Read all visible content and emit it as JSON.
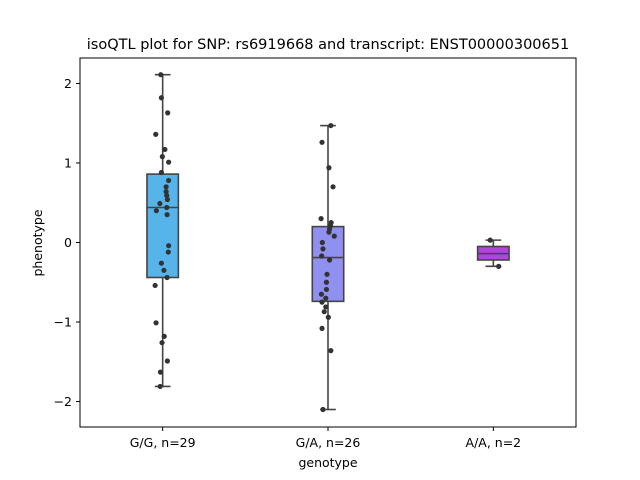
{
  "chart_data": {
    "type": "box",
    "title": "isoQTL plot for SNP: rs6919668 and transcript: ENST00000300651",
    "xlabel": "genotype",
    "ylabel": "phenotype",
    "ylim": [
      -2.32,
      2.32
    ],
    "yticks": [
      2,
      1,
      0,
      -1,
      -2
    ],
    "ytick_labels": [
      "2",
      "1",
      "0",
      "−1",
      "−2"
    ],
    "categories": [
      "G/G, n=29",
      "G/A, n=26",
      "A/A, n=2"
    ],
    "grid": false,
    "boxes": [
      {
        "label": "G/G, n=29",
        "color": "#56b4ea",
        "whislo": -1.81,
        "q1": -0.44,
        "med": 0.44,
        "q3": 0.86,
        "whishi": 2.11
      },
      {
        "label": "G/A, n=26",
        "color": "#9090f0",
        "whislo": -2.1,
        "q1": -0.74,
        "med": -0.19,
        "q3": 0.2,
        "whishi": 1.47
      },
      {
        "label": "A/A, n=2",
        "color": "#b044dd",
        "whislo": -0.3,
        "q1": -0.22,
        "med": -0.14,
        "q3": -0.05,
        "whishi": 0.03
      }
    ],
    "points": [
      [
        {
          "x": -0.06,
          "y": 2.11
        },
        {
          "x": -0.04,
          "y": 1.82
        },
        {
          "x": 0.16,
          "y": 1.63
        },
        {
          "x": -0.22,
          "y": 1.36
        },
        {
          "x": 0.07,
          "y": 1.17
        },
        {
          "x": -0.01,
          "y": 1.08
        },
        {
          "x": 0.19,
          "y": 1.01
        },
        {
          "x": -0.04,
          "y": 0.88
        },
        {
          "x": 0.19,
          "y": 0.78
        },
        {
          "x": 0.11,
          "y": 0.64
        },
        {
          "x": 0.13,
          "y": 0.59
        },
        {
          "x": 0.15,
          "y": 0.54
        },
        {
          "x": -0.09,
          "y": 0.49
        },
        {
          "x": 0.13,
          "y": 0.44
        },
        {
          "x": -0.2,
          "y": 0.4
        },
        {
          "x": 0.14,
          "y": 0.35
        },
        {
          "x": 0.19,
          "y": -0.04
        },
        {
          "x": 0.18,
          "y": -0.12
        },
        {
          "x": -0.04,
          "y": -0.26
        },
        {
          "x": 0.04,
          "y": -0.35
        },
        {
          "x": 0.14,
          "y": -0.44
        },
        {
          "x": -0.24,
          "y": -0.54
        },
        {
          "x": -0.21,
          "y": -1.01
        },
        {
          "x": 0.05,
          "y": -1.18
        },
        {
          "x": -0.02,
          "y": -1.26
        },
        {
          "x": 0.15,
          "y": -1.49
        },
        {
          "x": -0.07,
          "y": -1.63
        },
        {
          "x": -0.08,
          "y": -1.81
        },
        {
          "x": 0.11,
          "y": 0.7
        }
      ],
      [
        {
          "x": 0.09,
          "y": 1.47
        },
        {
          "x": -0.19,
          "y": 1.26
        },
        {
          "x": 0.03,
          "y": 0.94
        },
        {
          "x": 0.16,
          "y": 0.7
        },
        {
          "x": -0.22,
          "y": 0.3
        },
        {
          "x": 0.1,
          "y": 0.25
        },
        {
          "x": 0.08,
          "y": 0.21
        },
        {
          "x": 0.05,
          "y": 0.17
        },
        {
          "x": 0.03,
          "y": 0.13
        },
        {
          "x": 0.2,
          "y": 0.08
        },
        {
          "x": -0.18,
          "y": 0.0
        },
        {
          "x": -0.16,
          "y": -0.08
        },
        {
          "x": -0.2,
          "y": -0.17
        },
        {
          "x": 0.05,
          "y": -0.22
        },
        {
          "x": -0.03,
          "y": -0.4
        },
        {
          "x": -0.05,
          "y": -0.5
        },
        {
          "x": -0.05,
          "y": -0.59
        },
        {
          "x": -0.21,
          "y": -0.65
        },
        {
          "x": -0.07,
          "y": -0.7
        },
        {
          "x": -0.19,
          "y": -0.75
        },
        {
          "x": -0.07,
          "y": -0.81
        },
        {
          "x": -0.12,
          "y": -0.87
        },
        {
          "x": 0.01,
          "y": -0.94
        },
        {
          "x": -0.19,
          "y": -1.08
        },
        {
          "x": 0.09,
          "y": -1.36
        },
        {
          "x": -0.16,
          "y": -2.1
        }
      ],
      [
        {
          "x": -0.1,
          "y": 0.03
        },
        {
          "x": 0.17,
          "y": -0.3
        }
      ]
    ]
  }
}
